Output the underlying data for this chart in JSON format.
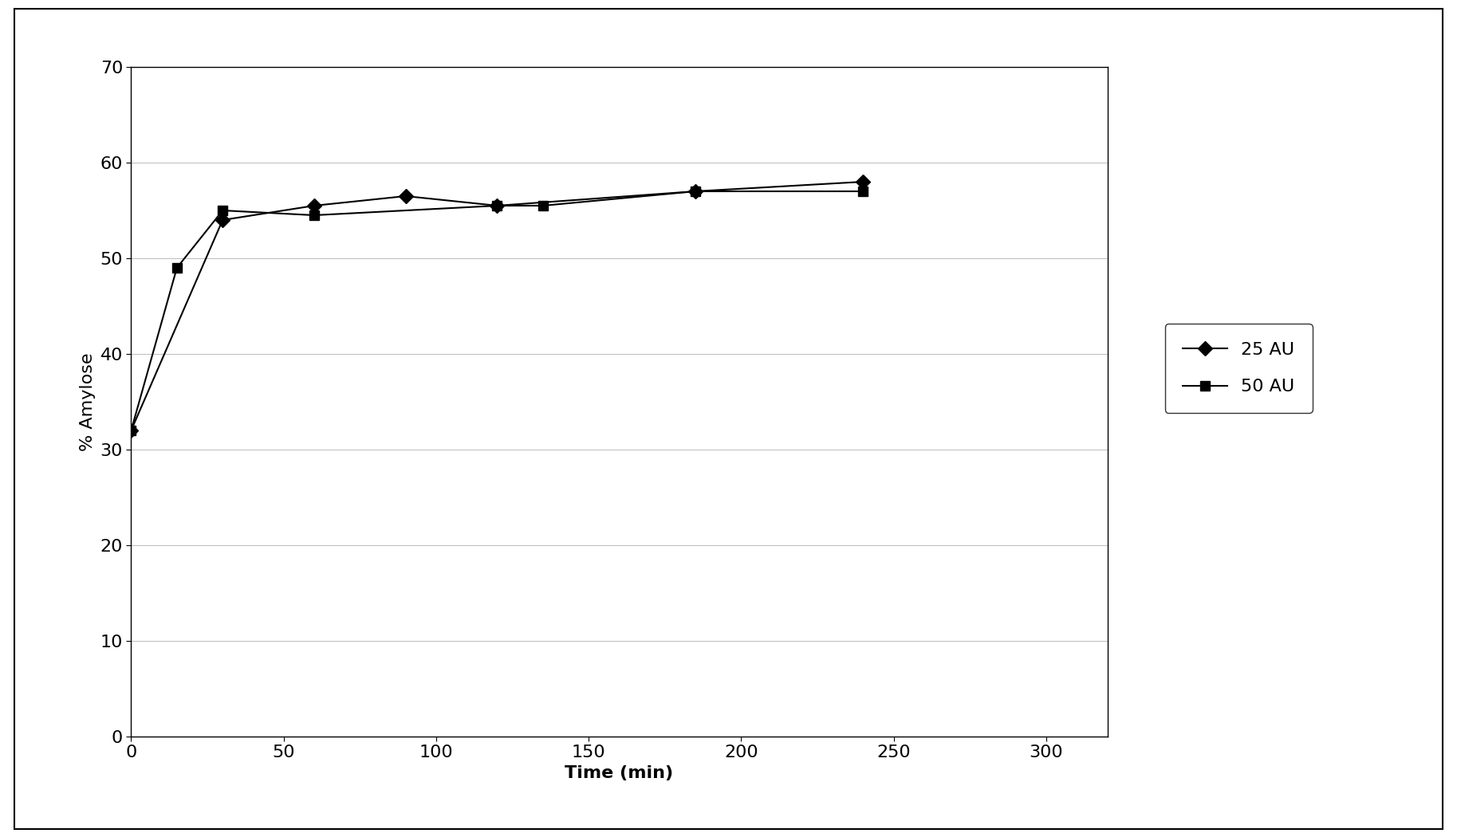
{
  "series": [
    {
      "label": "25 AU",
      "x": [
        0,
        30,
        60,
        90,
        120,
        185,
        240
      ],
      "y": [
        32,
        54,
        55.5,
        56.5,
        55.5,
        57,
        58
      ],
      "marker": "D",
      "color": "#000000",
      "linewidth": 1.5,
      "markersize": 9
    },
    {
      "label": "50 AU",
      "x": [
        0,
        15,
        30,
        60,
        120,
        135,
        185,
        240
      ],
      "y": [
        32,
        49,
        55,
        54.5,
        55.5,
        55.5,
        57,
        57
      ],
      "marker": "s",
      "color": "#000000",
      "linewidth": 1.5,
      "markersize": 9
    }
  ],
  "xlabel": "Time (min)",
  "ylabel": "% Amylose",
  "xlim": [
    0,
    320
  ],
  "ylim": [
    0,
    70
  ],
  "xticks": [
    0,
    50,
    100,
    150,
    200,
    250,
    300
  ],
  "yticks": [
    0,
    10,
    20,
    30,
    40,
    50,
    60,
    70
  ],
  "grid_color": "#bbbbbb",
  "background_color": "#ffffff",
  "xlabel_fontsize": 16,
  "ylabel_fontsize": 16,
  "tick_fontsize": 16,
  "legend_fontsize": 16,
  "outer_border_color": "#000000"
}
